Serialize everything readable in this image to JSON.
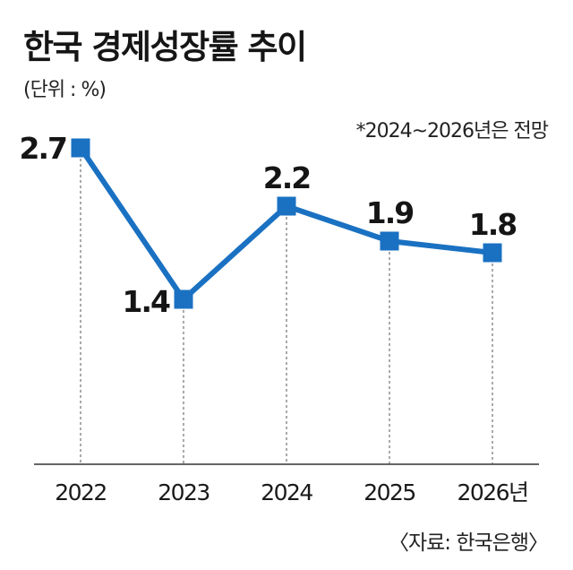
{
  "header": {
    "title": "한국 경제성장률 추이",
    "unit": "(단위 : %)",
    "forecast_note": "*2024~2026년은 전망"
  },
  "footer": {
    "source": "〈자료: 한국은행〉"
  },
  "colors": {
    "line": "#1a71c2",
    "marker": "#1a71c2",
    "axis": "#333333",
    "guide": "#555555"
  },
  "chart_data": {
    "type": "line",
    "title": "한국 경제성장률 추이",
    "ylabel": "(단위 : %)",
    "categories": [
      "2022",
      "2023",
      "2024",
      "2025",
      "2026년"
    ],
    "values": [
      2.7,
      1.4,
      2.2,
      1.9,
      1.8
    ],
    "value_labels": [
      "2.7",
      "1.4",
      "2.2",
      "1.9",
      "1.8"
    ],
    "ylim": [
      0.6,
      2.7
    ],
    "grid": false,
    "legend": "none",
    "annotation": "*2024~2026년은 전망"
  }
}
